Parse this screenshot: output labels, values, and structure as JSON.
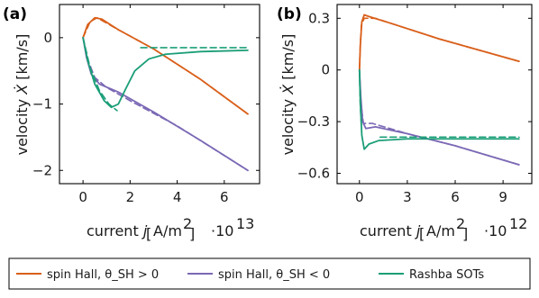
{
  "colors": {
    "orange": "#d95f1a",
    "purple": "#7b68b5",
    "teal": "#1b9e77"
  },
  "legend": [
    {
      "label": "spin Hall, θ_SH > 0",
      "color": "#d95f1a"
    },
    {
      "label": "spin Hall, θ_SH < 0",
      "color": "#7b68b5"
    },
    {
      "label": "Rashba SOTs",
      "color": "#1b9e77"
    }
  ],
  "chart_data": [
    {
      "type": "line",
      "panel": "(a)",
      "ylabel": "velocity Ẋ [km/s]",
      "xlabel": "current j [A/m²]",
      "x_multiplier": "·10^13",
      "xlim": [
        -1,
        7.5
      ],
      "ylim": [
        -2.2,
        0.5
      ],
      "xticks": [
        0,
        2,
        4,
        6
      ],
      "yticks": [
        0,
        -1,
        -2
      ],
      "series": [
        {
          "name": "spin Hall, θ_SH > 0",
          "color": "#d95f1a",
          "style": "solid",
          "points": [
            [
              0,
              0
            ],
            [
              0.2,
              0.2
            ],
            [
              0.5,
              0.3
            ],
            [
              0.8,
              0.28
            ],
            [
              1.5,
              0.12
            ],
            [
              3,
              -0.17
            ],
            [
              5,
              -0.63
            ],
            [
              7,
              -1.15
            ]
          ]
        },
        {
          "name": "spin Hall, θ_SH > 0",
          "color": "#d95f1a",
          "style": "dashed",
          "points": [
            [
              0,
              0
            ],
            [
              0.3,
              0.24
            ],
            [
              0.6,
              0.3
            ],
            [
              1.5,
              0.12
            ],
            [
              3,
              -0.17
            ],
            [
              5,
              -0.63
            ],
            [
              7,
              -1.15
            ]
          ]
        },
        {
          "name": "spin Hall, θ_SH < 0",
          "color": "#7b68b5",
          "style": "solid",
          "points": [
            [
              0,
              0
            ],
            [
              0.15,
              -0.3
            ],
            [
              0.35,
              -0.55
            ],
            [
              0.7,
              -0.7
            ],
            [
              1.5,
              -0.82
            ],
            [
              3,
              -1.12
            ],
            [
              5,
              -1.55
            ],
            [
              7,
              -2.0
            ]
          ]
        },
        {
          "name": "spin Hall, θ_SH < 0",
          "color": "#7b68b5",
          "style": "dashed",
          "points": [
            [
              0,
              0
            ],
            [
              0.2,
              -0.33
            ],
            [
              0.5,
              -0.6
            ],
            [
              1,
              -0.75
            ],
            [
              2,
              -0.95
            ],
            [
              4,
              -1.33
            ],
            [
              7,
              -2.0
            ]
          ]
        },
        {
          "name": "Rashba SOTs",
          "color": "#1b9e77",
          "style": "solid",
          "points": [
            [
              0,
              0
            ],
            [
              0.2,
              -0.35
            ],
            [
              0.5,
              -0.7
            ],
            [
              0.9,
              -0.95
            ],
            [
              1.2,
              -1.05
            ],
            [
              1.5,
              -1.0
            ],
            [
              1.8,
              -0.78
            ],
            [
              2.2,
              -0.5
            ],
            [
              2.8,
              -0.32
            ],
            [
              3.5,
              -0.25
            ],
            [
              5,
              -0.21
            ],
            [
              7,
              -0.19
            ]
          ]
        },
        {
          "name": "Rashba SOTs",
          "color": "#1b9e77",
          "style": "dashed",
          "points": [
            [
              0,
              0
            ],
            [
              0.3,
              -0.45
            ],
            [
              0.7,
              -0.8
            ],
            [
              1.1,
              -1.0
            ],
            [
              1.45,
              -1.1
            ]
          ]
        },
        {
          "name": "Rashba SOTs",
          "color": "#1b9e77",
          "style": "dashed",
          "points": [
            [
              2.45,
              -0.15
            ],
            [
              7,
              -0.15
            ]
          ]
        }
      ]
    },
    {
      "type": "line",
      "panel": "(b)",
      "ylabel": "velocity Ẋ [km/s]",
      "xlabel": "current j [A/m²]",
      "x_multiplier": "·10^12",
      "xlim": [
        -1.4,
        10.8
      ],
      "ylim": [
        -0.66,
        0.38
      ],
      "xticks": [
        0,
        3,
        6,
        9
      ],
      "yticks": [
        0.3,
        0,
        -0.3,
        -0.6
      ],
      "series": [
        {
          "name": "spin Hall, θ_SH > 0",
          "color": "#d95f1a",
          "style": "solid",
          "points": [
            [
              0,
              0
            ],
            [
              0.06,
              0.15
            ],
            [
              0.15,
              0.28
            ],
            [
              0.3,
              0.32
            ],
            [
              0.6,
              0.31
            ],
            [
              2,
              0.27
            ],
            [
              5,
              0.18
            ],
            [
              10,
              0.05
            ]
          ]
        },
        {
          "name": "spin Hall, θ_SH > 0",
          "color": "#d95f1a",
          "style": "dashed",
          "points": [
            [
              0,
              0
            ],
            [
              0.05,
              0.14
            ],
            [
              0.12,
              0.26
            ],
            [
              0.3,
              0.3
            ],
            [
              1,
              0.3
            ],
            [
              5,
              0.18
            ],
            [
              10,
              0.05
            ]
          ]
        },
        {
          "name": "spin Hall, θ_SH < 0",
          "color": "#7b68b5",
          "style": "solid",
          "points": [
            [
              0,
              0
            ],
            [
              0.08,
              -0.15
            ],
            [
              0.2,
              -0.3
            ],
            [
              0.4,
              -0.34
            ],
            [
              1,
              -0.33
            ],
            [
              3,
              -0.37
            ],
            [
              6,
              -0.44
            ],
            [
              10,
              -0.55
            ]
          ]
        },
        {
          "name": "spin Hall, θ_SH < 0",
          "color": "#7b68b5",
          "style": "dashed",
          "points": [
            [
              0,
              0
            ],
            [
              0.1,
              -0.2
            ],
            [
              0.25,
              -0.31
            ],
            [
              0.8,
              -0.31
            ],
            [
              3,
              -0.37
            ],
            [
              6,
              -0.44
            ],
            [
              10,
              -0.55
            ]
          ]
        },
        {
          "name": "Rashba SOTs",
          "color": "#1b9e77",
          "style": "solid",
          "points": [
            [
              0,
              0
            ],
            [
              0.06,
              -0.2
            ],
            [
              0.15,
              -0.38
            ],
            [
              0.3,
              -0.46
            ],
            [
              0.6,
              -0.43
            ],
            [
              1.2,
              -0.41
            ],
            [
              3,
              -0.4
            ],
            [
              10,
              -0.4
            ]
          ]
        },
        {
          "name": "Rashba SOTs",
          "color": "#1b9e77",
          "style": "dashed",
          "points": [
            [
              0,
              0
            ],
            [
              0.05,
              -0.2
            ],
            [
              0.12,
              -0.32
            ]
          ]
        },
        {
          "name": "Rashba SOTs",
          "color": "#1b9e77",
          "style": "dashed",
          "points": [
            [
              1.3,
              -0.39
            ],
            [
              10,
              -0.39
            ]
          ]
        }
      ]
    }
  ]
}
